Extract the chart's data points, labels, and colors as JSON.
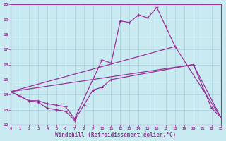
{
  "xlabel": "Windchill (Refroidissement éolien,°C)",
  "xlim": [
    0,
    23
  ],
  "ylim": [
    12,
    20
  ],
  "yticks": [
    12,
    13,
    14,
    15,
    16,
    17,
    18,
    19,
    20
  ],
  "xticks": [
    0,
    1,
    2,
    3,
    4,
    5,
    6,
    7,
    8,
    9,
    10,
    11,
    12,
    13,
    14,
    15,
    16,
    17,
    18,
    19,
    20,
    21,
    22,
    23
  ],
  "background_color": "#c8eaf0",
  "grid_color": "#aad4dc",
  "line_color": "#993399",
  "line1_x": [
    0,
    1,
    2,
    3,
    4,
    5,
    6,
    7,
    8,
    9,
    10,
    11,
    20,
    22,
    23
  ],
  "line1_y": [
    14.2,
    13.9,
    13.6,
    13.5,
    13.1,
    13.0,
    12.9,
    12.3,
    13.3,
    14.3,
    14.5,
    15.0,
    16.0,
    13.1,
    12.5
  ],
  "line2_x": [
    0,
    1,
    2,
    3,
    4,
    5,
    6,
    7,
    10,
    11,
    12,
    13,
    14,
    15,
    16,
    17,
    18
  ],
  "line2_y": [
    14.2,
    13.9,
    13.6,
    13.6,
    13.4,
    13.3,
    13.2,
    12.4,
    16.3,
    16.1,
    18.9,
    18.8,
    19.3,
    19.1,
    19.8,
    18.5,
    17.2
  ],
  "line3_x": [
    0,
    20,
    23
  ],
  "line3_y": [
    14.2,
    16.0,
    12.5
  ],
  "line4_x": [
    0,
    18,
    23
  ],
  "line4_y": [
    14.2,
    17.2,
    12.5
  ]
}
